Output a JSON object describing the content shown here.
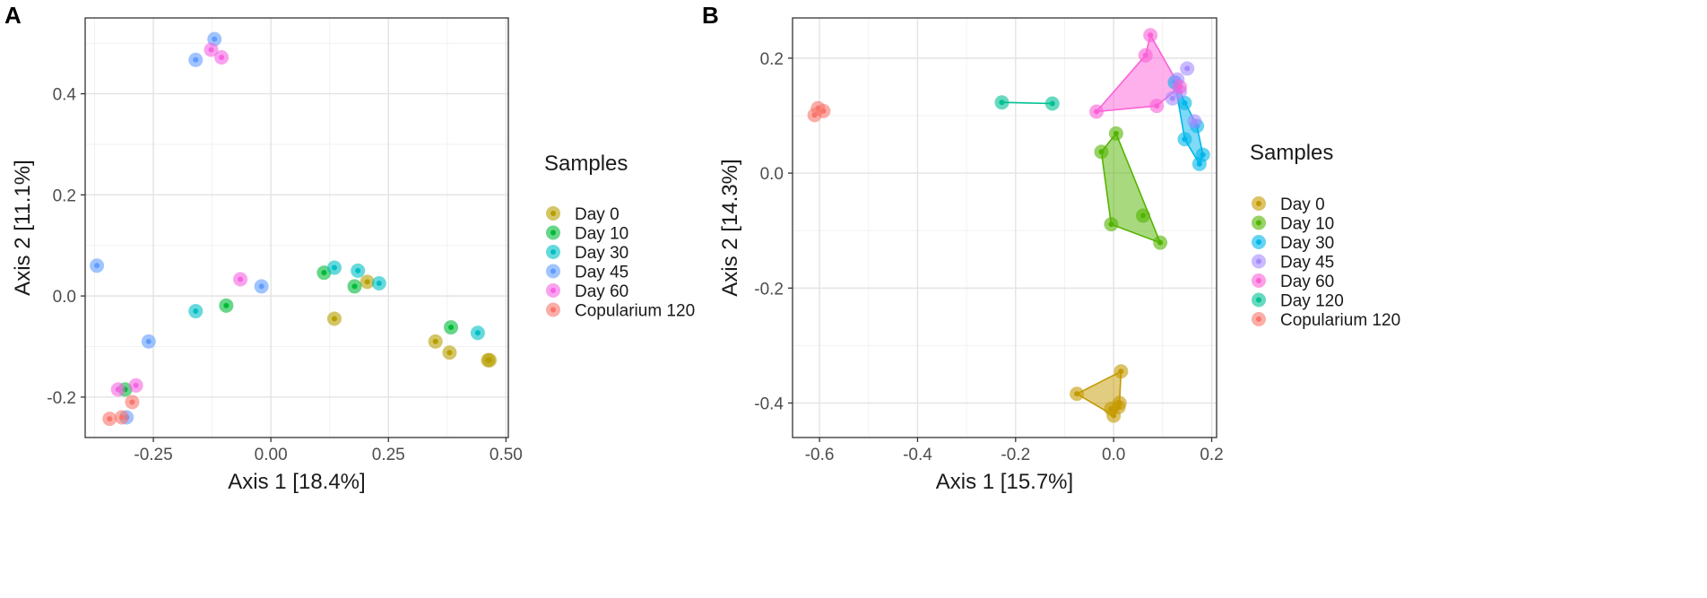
{
  "chart_data": [
    {
      "panel_label": "A",
      "type": "scatter",
      "xlabel": "Axis 1   [18.4%]",
      "ylabel": "Axis 2   [11.1%]",
      "xlim": [
        -0.395,
        0.505
      ],
      "ylim": [
        -0.28,
        0.55
      ],
      "xticks": [
        -0.25,
        0.0,
        0.25,
        0.5
      ],
      "xtick_labels": [
        "-0.25",
        "0.00",
        "0.25",
        "0.50"
      ],
      "yticks": [
        -0.2,
        0.0,
        0.2,
        0.4
      ],
      "ytick_labels": [
        "-0.2",
        "0.0",
        "0.2",
        "0.4"
      ],
      "legend": {
        "title": "Samples",
        "entries": [
          {
            "label": "Day  0",
            "color": "#b79f00"
          },
          {
            "label": "Day  10",
            "color": "#00ba38"
          },
          {
            "label": "Day  30",
            "color": "#00bfc4"
          },
          {
            "label": "Day  45",
            "color": "#619cff"
          },
          {
            "label": "Day  60",
            "color": "#f564e3"
          },
          {
            "label": "Copularium  120",
            "color": "#f8766d"
          }
        ]
      },
      "series": [
        {
          "name": "Day  0",
          "color": "#b79f00",
          "points": [
            [
              0.135,
              -0.045
            ],
            [
              0.205,
              0.028
            ],
            [
              0.35,
              -0.09
            ],
            [
              0.38,
              -0.112
            ],
            [
              0.465,
              -0.127
            ],
            [
              0.462,
              -0.127
            ]
          ]
        },
        {
          "name": "Day  10",
          "color": "#00ba38",
          "points": [
            [
              0.113,
              0.046
            ],
            [
              0.178,
              0.019
            ],
            [
              0.383,
              -0.062
            ],
            [
              -0.095,
              -0.019
            ],
            [
              -0.31,
              -0.185
            ]
          ]
        },
        {
          "name": "Day  30",
          "color": "#00bfc4",
          "points": [
            [
              0.135,
              0.056
            ],
            [
              0.185,
              0.05
            ],
            [
              0.23,
              0.025
            ],
            [
              0.44,
              -0.073
            ],
            [
              -0.16,
              -0.03
            ]
          ]
        },
        {
          "name": "Day  45",
          "color": "#619cff",
          "points": [
            [
              -0.37,
              0.06
            ],
            [
              -0.12,
              0.508
            ],
            [
              -0.16,
              0.467
            ],
            [
              -0.02,
              0.019
            ],
            [
              -0.26,
              -0.09
            ],
            [
              -0.307,
              -0.24
            ]
          ]
        },
        {
          "name": "Day  60",
          "color": "#f564e3",
          "points": [
            [
              -0.127,
              0.487
            ],
            [
              -0.105,
              0.472
            ],
            [
              -0.065,
              0.033
            ],
            [
              -0.287,
              -0.177
            ],
            [
              -0.325,
              -0.185
            ]
          ]
        },
        {
          "name": "Copularium  120",
          "color": "#f8766d",
          "points": [
            [
              -0.343,
              -0.243
            ],
            [
              -0.317,
              -0.24
            ],
            [
              -0.295,
              -0.21
            ]
          ]
        }
      ]
    },
    {
      "panel_label": "B",
      "type": "scatter",
      "xlabel": "Axis 1   [15.7%]",
      "ylabel": "Axis 2   [14.3%]",
      "xlim": [
        -0.655,
        0.21
      ],
      "ylim": [
        -0.46,
        0.27
      ],
      "xticks": [
        -0.6,
        -0.4,
        -0.2,
        0.0,
        0.2
      ],
      "xtick_labels": [
        "-0.6",
        "-0.4",
        "-0.2",
        "0.0",
        "0.2"
      ],
      "yticks": [
        -0.4,
        -0.2,
        0.0,
        0.2
      ],
      "ytick_labels": [
        "-0.4",
        "-0.2",
        "0.0",
        "0.2"
      ],
      "legend": {
        "title": "Samples",
        "entries": [
          {
            "label": "Day  0",
            "color": "#c49a00"
          },
          {
            "label": "Day  10",
            "color": "#53b400"
          },
          {
            "label": "Day  30",
            "color": "#00b6eb"
          },
          {
            "label": "Day  45",
            "color": "#a58aff"
          },
          {
            "label": "Day  60",
            "color": "#fb61d7"
          },
          {
            "label": "Day  120",
            "color": "#00c094"
          },
          {
            "label": "Copularium  120",
            "color": "#f8766d"
          }
        ]
      },
      "series": [
        {
          "name": "Day  0",
          "color": "#c49a00",
          "hull": [
            [
              -0.075,
              -0.384
            ],
            [
              0.0,
              -0.422
            ],
            [
              0.012,
              -0.4
            ],
            [
              0.015,
              -0.345
            ]
          ],
          "points": [
            [
              -0.075,
              -0.384
            ],
            [
              -0.005,
              -0.41
            ],
            [
              0.0,
              -0.422
            ],
            [
              0.01,
              -0.407
            ],
            [
              0.012,
              -0.4
            ],
            [
              0.015,
              -0.345
            ]
          ]
        },
        {
          "name": "Day  10",
          "color": "#53b400",
          "hull": [
            [
              -0.025,
              0.037
            ],
            [
              0.005,
              0.069
            ],
            [
              0.095,
              -0.121
            ],
            [
              -0.005,
              -0.089
            ]
          ],
          "points": [
            [
              -0.025,
              0.037
            ],
            [
              0.005,
              0.069
            ],
            [
              0.06,
              -0.074
            ],
            [
              0.095,
              -0.121
            ],
            [
              -0.005,
              -0.089
            ]
          ]
        },
        {
          "name": "Day  30",
          "color": "#00b6eb",
          "hull": [
            [
              0.125,
              0.158
            ],
            [
              0.17,
              0.082
            ],
            [
              0.182,
              0.032
            ],
            [
              0.175,
              0.016
            ],
            [
              0.145,
              0.059
            ]
          ],
          "points": [
            [
              0.125,
              0.158
            ],
            [
              0.145,
              0.122
            ],
            [
              0.17,
              0.082
            ],
            [
              0.182,
              0.032
            ],
            [
              0.175,
              0.016
            ],
            [
              0.145,
              0.059
            ]
          ]
        },
        {
          "name": "Day  45",
          "color": "#a58aff",
          "points": [
            [
              0.15,
              0.182
            ],
            [
              0.13,
              0.163
            ],
            [
              0.12,
              0.13
            ],
            [
              0.135,
              0.142
            ],
            [
              0.165,
              0.09
            ]
          ]
        },
        {
          "name": "Day  60",
          "color": "#fb61d7",
          "hull": [
            [
              0.065,
              0.205
            ],
            [
              0.075,
              0.24
            ],
            [
              0.135,
              0.15
            ],
            [
              0.088,
              0.117
            ],
            [
              -0.035,
              0.107
            ]
          ],
          "points": [
            [
              0.075,
              0.24
            ],
            [
              0.065,
              0.205
            ],
            [
              0.135,
              0.15
            ],
            [
              0.088,
              0.117
            ],
            [
              -0.035,
              0.107
            ]
          ]
        },
        {
          "name": "Day  120",
          "color": "#00c094",
          "hull": [
            [
              -0.228,
              0.123
            ],
            [
              -0.125,
              0.121
            ]
          ],
          "points": [
            [
              -0.228,
              0.123
            ],
            [
              -0.125,
              0.121
            ]
          ]
        },
        {
          "name": "Copularium  120",
          "color": "#f8766d",
          "points": [
            [
              -0.61,
              0.101
            ],
            [
              -0.603,
              0.113
            ],
            [
              -0.592,
              0.108
            ]
          ]
        }
      ]
    }
  ]
}
